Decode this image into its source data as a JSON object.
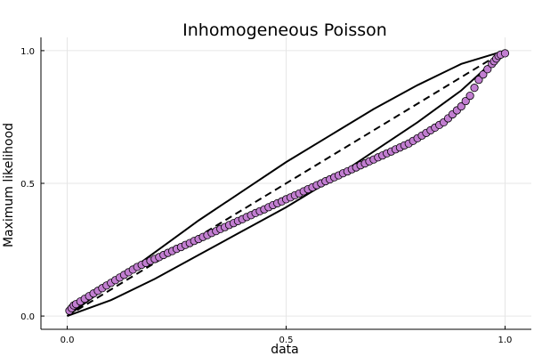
{
  "chart_data": {
    "type": "scatter",
    "title": "Inhomogeneous Poisson",
    "xlabel": "data",
    "ylabel": "Maximum likelihood",
    "xlim": [
      -0.06,
      1.06
    ],
    "ylim": [
      -0.05,
      1.05
    ],
    "xticks": [
      0.0,
      0.5,
      1.0
    ],
    "yticks": [
      0.0,
      0.5,
      1.0
    ],
    "xtick_labels": [
      "0.0",
      "0.5",
      "1.0"
    ],
    "ytick_labels": [
      "0.0",
      "0.5",
      "1.0"
    ],
    "grid": true,
    "legend": "none",
    "colors": {
      "points": "#c27ed1",
      "point_stroke": "#000000",
      "lines": "#000000",
      "grid": "#e6e6e6"
    },
    "reference_line": {
      "style": "dashed",
      "x": [
        0.0,
        1.0
      ],
      "y": [
        0.0,
        1.0
      ]
    },
    "envelope": {
      "style": "solid",
      "upper": {
        "x": [
          0.0,
          0.1,
          0.2,
          0.3,
          0.4,
          0.5,
          0.6,
          0.7,
          0.8,
          0.9,
          1.0
        ],
        "y": [
          0.0,
          0.12,
          0.24,
          0.36,
          0.47,
          0.58,
          0.68,
          0.78,
          0.87,
          0.95,
          1.0
        ]
      },
      "lower": {
        "x": [
          0.0,
          0.1,
          0.2,
          0.3,
          0.4,
          0.5,
          0.6,
          0.7,
          0.8,
          0.9,
          1.0
        ],
        "y": [
          0.0,
          0.06,
          0.14,
          0.23,
          0.32,
          0.41,
          0.51,
          0.62,
          0.73,
          0.85,
          1.0
        ]
      }
    },
    "points": {
      "x": [
        0.005,
        0.01,
        0.015,
        0.02,
        0.03,
        0.04,
        0.05,
        0.06,
        0.07,
        0.08,
        0.09,
        0.1,
        0.11,
        0.12,
        0.13,
        0.14,
        0.15,
        0.16,
        0.17,
        0.18,
        0.19,
        0.2,
        0.21,
        0.22,
        0.23,
        0.24,
        0.25,
        0.26,
        0.27,
        0.28,
        0.29,
        0.3,
        0.31,
        0.32,
        0.33,
        0.34,
        0.35,
        0.36,
        0.37,
        0.38,
        0.39,
        0.4,
        0.41,
        0.42,
        0.43,
        0.44,
        0.45,
        0.46,
        0.47,
        0.48,
        0.49,
        0.5,
        0.51,
        0.52,
        0.53,
        0.54,
        0.55,
        0.56,
        0.57,
        0.58,
        0.59,
        0.6,
        0.61,
        0.62,
        0.63,
        0.64,
        0.65,
        0.66,
        0.67,
        0.68,
        0.69,
        0.7,
        0.71,
        0.72,
        0.73,
        0.74,
        0.75,
        0.76,
        0.77,
        0.78,
        0.79,
        0.8,
        0.81,
        0.82,
        0.83,
        0.84,
        0.85,
        0.86,
        0.87,
        0.88,
        0.89,
        0.9,
        0.91,
        0.92,
        0.93,
        0.94,
        0.95,
        0.96,
        0.97,
        0.975,
        0.98,
        0.985,
        0.99,
        1.0
      ],
      "y": [
        0.02,
        0.03,
        0.04,
        0.045,
        0.055,
        0.065,
        0.075,
        0.085,
        0.095,
        0.105,
        0.115,
        0.125,
        0.135,
        0.145,
        0.155,
        0.165,
        0.175,
        0.185,
        0.193,
        0.2,
        0.208,
        0.215,
        0.222,
        0.23,
        0.238,
        0.245,
        0.253,
        0.26,
        0.268,
        0.275,
        0.283,
        0.29,
        0.298,
        0.305,
        0.313,
        0.32,
        0.328,
        0.335,
        0.343,
        0.35,
        0.358,
        0.365,
        0.373,
        0.38,
        0.388,
        0.395,
        0.402,
        0.41,
        0.418,
        0.425,
        0.432,
        0.44,
        0.447,
        0.455,
        0.462,
        0.47,
        0.478,
        0.485,
        0.493,
        0.5,
        0.508,
        0.515,
        0.523,
        0.53,
        0.538,
        0.545,
        0.553,
        0.56,
        0.568,
        0.575,
        0.583,
        0.59,
        0.598,
        0.605,
        0.613,
        0.62,
        0.628,
        0.635,
        0.643,
        0.65,
        0.66,
        0.67,
        0.68,
        0.69,
        0.7,
        0.71,
        0.72,
        0.73,
        0.745,
        0.76,
        0.775,
        0.79,
        0.81,
        0.83,
        0.86,
        0.89,
        0.91,
        0.93,
        0.95,
        0.96,
        0.97,
        0.98,
        0.985,
        0.99
      ]
    }
  }
}
